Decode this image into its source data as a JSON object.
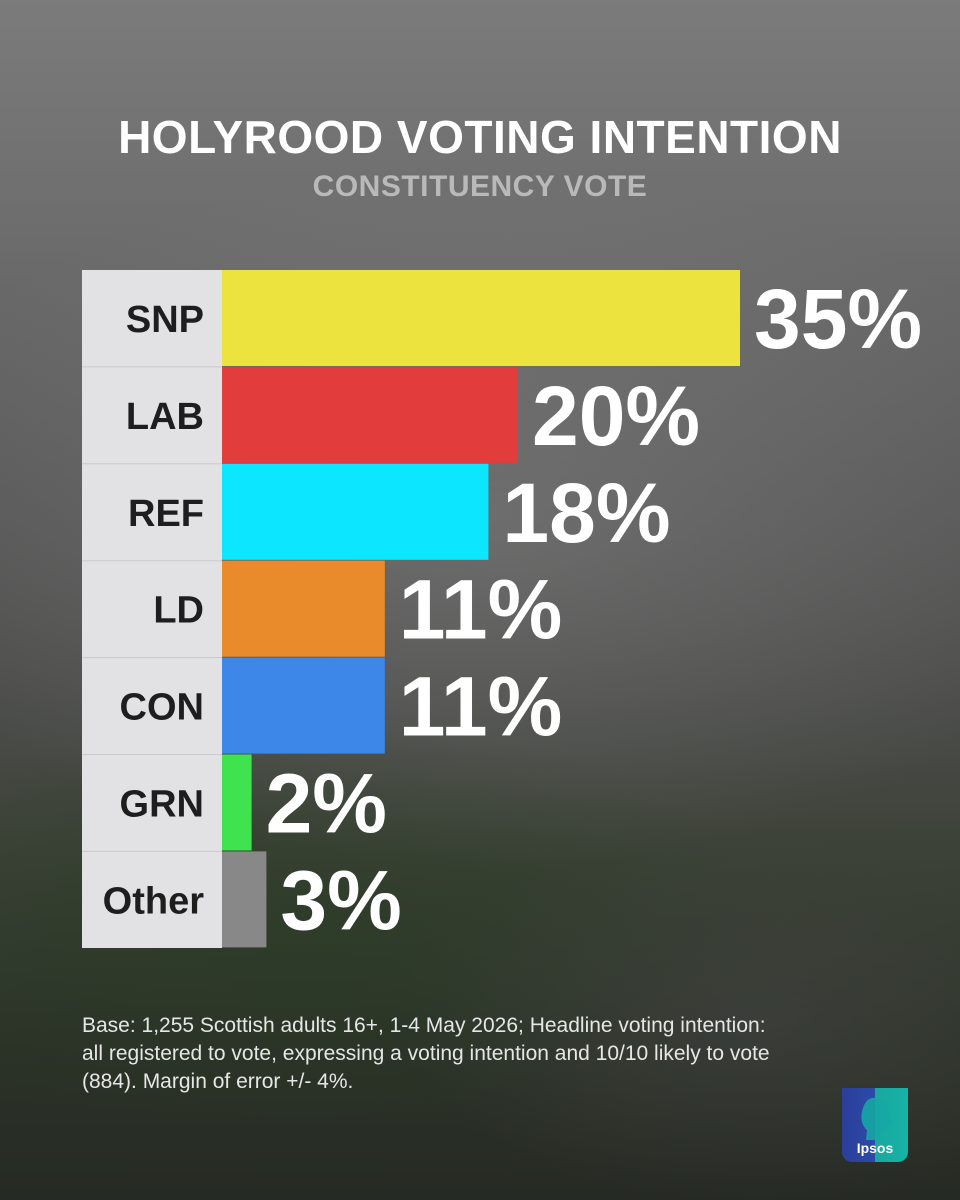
{
  "chart_data": {
    "type": "bar",
    "orientation": "horizontal",
    "title": "HOLYROOD VOTING INTENTION",
    "subtitle": "CONSTITUENCY VOTE",
    "categories": [
      "SNP",
      "LAB",
      "REF",
      "LD",
      "CON",
      "GRN",
      "Other"
    ],
    "values": [
      35,
      20,
      18,
      11,
      11,
      2,
      3
    ],
    "value_labels": [
      "35%",
      "20%",
      "18%",
      "11%",
      "11%",
      "2%",
      "3%"
    ],
    "colors": [
      "#ece33f",
      "#e33c3c",
      "#0ce6ff",
      "#e98b2a",
      "#3c87e8",
      "#3fe24f",
      "#888888"
    ],
    "xlim": [
      0,
      35
    ],
    "grid": false,
    "legend": "none"
  },
  "footnote": "Base: 1,255 Scottish adults 16+, 1-4 May 2026; Headline voting intention: all registered to vote, expressing a voting intention and 10/10 likely to vote (884). Margin of error +/- 4%.",
  "logo": {
    "text": "Ipsos"
  }
}
